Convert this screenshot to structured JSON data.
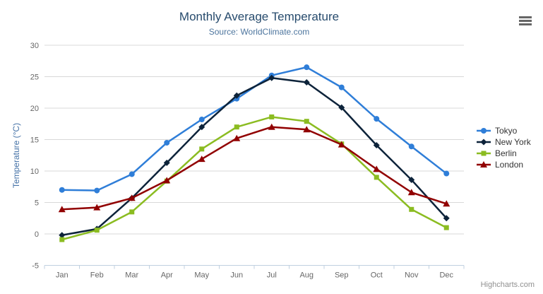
{
  "chart_data": {
    "type": "line",
    "title": "Monthly Average Temperature",
    "subtitle": "Source: WorldClimate.com",
    "xlabel": "",
    "ylabel": "Temperature (°C)",
    "ylim": [
      -5,
      30
    ],
    "ytick_step": 5,
    "grid": true,
    "legend_position": "right",
    "categories": [
      "Jan",
      "Feb",
      "Mar",
      "Apr",
      "May",
      "Jun",
      "Jul",
      "Aug",
      "Sep",
      "Oct",
      "Nov",
      "Dec"
    ],
    "series": [
      {
        "name": "Tokyo",
        "color": "#2f7ed8",
        "marker": "circle",
        "values": [
          7.0,
          6.9,
          9.5,
          14.5,
          18.2,
          21.5,
          25.2,
          26.5,
          23.3,
          18.3,
          13.9,
          9.6
        ]
      },
      {
        "name": "New York",
        "color": "#0d233a",
        "marker": "diamond",
        "values": [
          -0.2,
          0.8,
          5.7,
          11.3,
          17.0,
          22.0,
          24.8,
          24.1,
          20.1,
          14.1,
          8.6,
          2.5
        ]
      },
      {
        "name": "Berlin",
        "color": "#8bbc21",
        "marker": "square",
        "values": [
          -0.9,
          0.6,
          3.5,
          8.4,
          13.5,
          17.0,
          18.6,
          17.9,
          14.3,
          9.0,
          3.9,
          1.0
        ]
      },
      {
        "name": "London",
        "color": "#910000",
        "marker": "triangle",
        "values": [
          3.9,
          4.2,
          5.7,
          8.5,
          11.9,
          15.2,
          17.0,
          16.6,
          14.2,
          10.3,
          6.6,
          4.8
        ]
      }
    ],
    "style": {
      "grid_color": "#d8d8d8",
      "axis_line_color": "#c0d0e0",
      "title_color": "#274b6d",
      "subtitle_color": "#4d759e",
      "ylabel_color": "#4572a7"
    }
  },
  "credits": "Highcharts.com"
}
